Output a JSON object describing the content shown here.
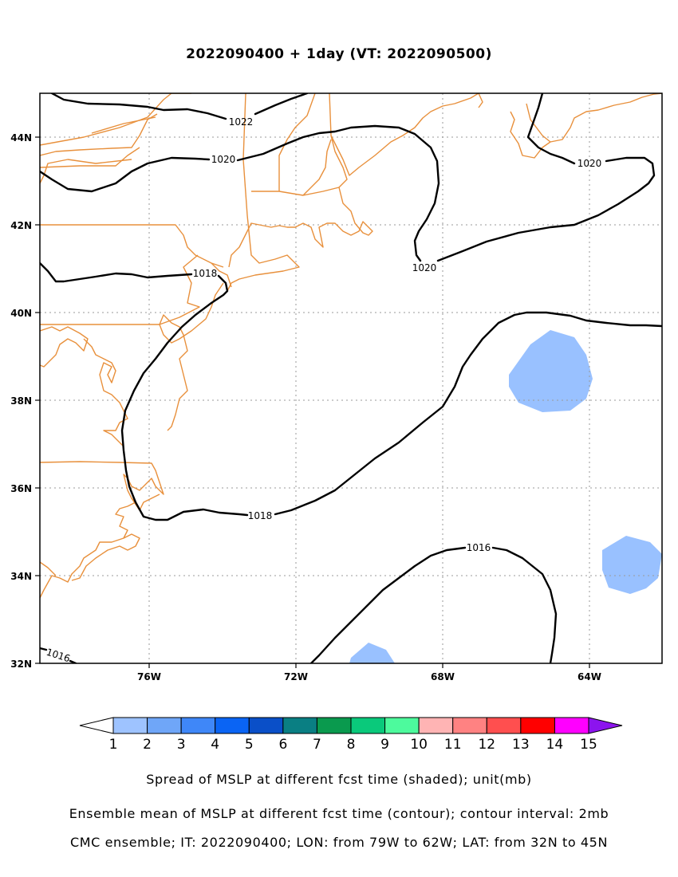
{
  "title": "2022090400 + 1day (VT: 2022090500)",
  "map": {
    "lon_range": [
      -79,
      -62
    ],
    "lat_range": [
      32,
      45
    ],
    "x_ticks": [
      "76W",
      "72W",
      "68W",
      "64W"
    ],
    "y_ticks": [
      "44N",
      "42N",
      "40N",
      "38N",
      "36N",
      "34N",
      "32N"
    ],
    "gridlines": "dotted",
    "coastline_color": "#e8903c",
    "contour_color": "#000000",
    "contour_labels": [
      {
        "text": "1022"
      },
      {
        "text": "1020"
      },
      {
        "text": "1020"
      },
      {
        "text": "1020"
      },
      {
        "text": "1018"
      },
      {
        "text": "1018"
      },
      {
        "text": "1016"
      },
      {
        "text": "1016"
      }
    ],
    "shaded_color": "#99c1ff"
  },
  "colorbar": {
    "labels": [
      "1",
      "2",
      "3",
      "4",
      "5",
      "6",
      "7",
      "8",
      "9",
      "10",
      "11",
      "12",
      "13",
      "14",
      "15"
    ],
    "colors": [
      "#ffffff",
      "#9ec3ff",
      "#6fa6f8",
      "#3f87f8",
      "#0a64f4",
      "#0a4fc8",
      "#0a7f83",
      "#0a9a4e",
      "#0ac97b",
      "#4dfa9d",
      "#ffb4b4",
      "#ff8282",
      "#ff4f4f",
      "#ff0000",
      "#ff00ff",
      "#8c14ee"
    ]
  },
  "captions": [
    "Spread of MSLP at different fcst time (shaded); unit(mb)",
    "Ensemble mean of MSLP at different fcst time (contour); contour interval: 2mb",
    "CMC ensemble; IT: 2022090400; LON: from 79W to 62W; LAT: from 32N to 45N"
  ]
}
